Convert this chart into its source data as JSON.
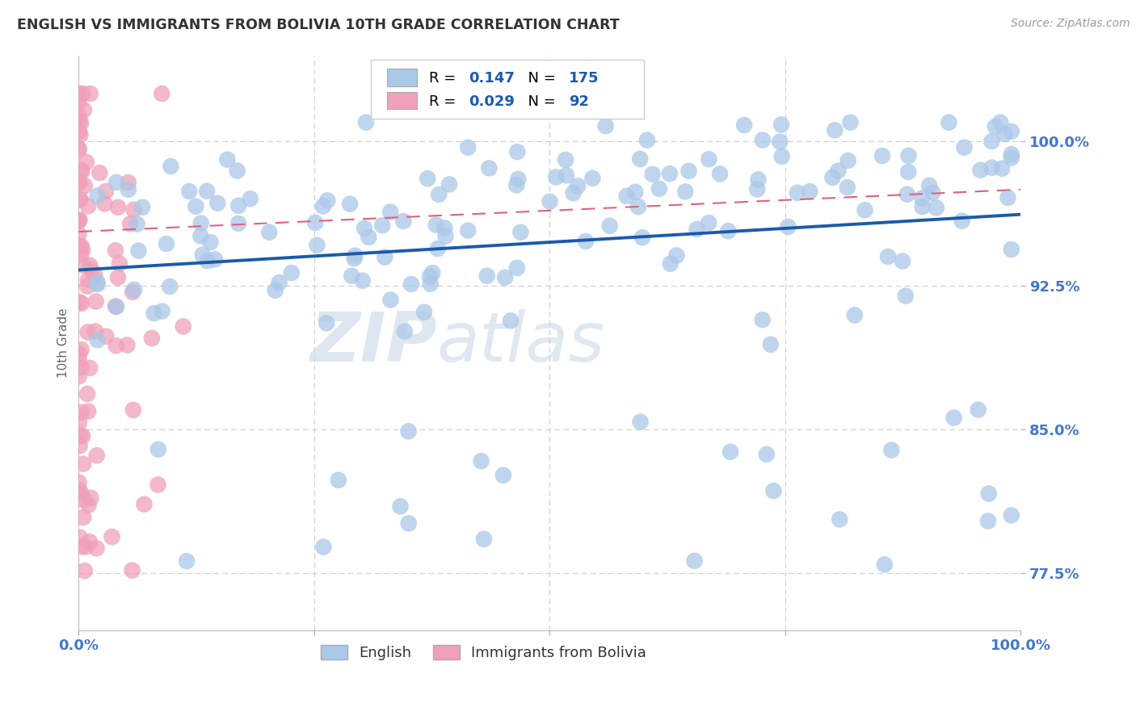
{
  "title": "ENGLISH VS IMMIGRANTS FROM BOLIVIA 10TH GRADE CORRELATION CHART",
  "source": "Source: ZipAtlas.com",
  "ylabel": "10th Grade",
  "ytick_labels": [
    "77.5%",
    "85.0%",
    "92.5%",
    "100.0%"
  ],
  "ytick_values": [
    0.775,
    0.85,
    0.925,
    1.0
  ],
  "xlim": [
    0.0,
    1.0
  ],
  "ylim": [
    0.745,
    1.045
  ],
  "english_R": 0.147,
  "english_N": 175,
  "bolivia_R": 0.029,
  "bolivia_N": 92,
  "english_color": "#aac8e8",
  "bolivia_color": "#f0a0b8",
  "english_line_color": "#1a5aad",
  "bolivia_line_color": "#e06080",
  "watermark_zip": "ZIP",
  "watermark_atlas": "atlas",
  "legend_english_label": "English",
  "legend_bolivia_label": "Immigrants from Bolivia",
  "background_color": "#ffffff",
  "grid_color": "#cccccc",
  "title_color": "#333333",
  "axis_label_color": "#4477cc",
  "legend_text_color": "#1a5aad"
}
